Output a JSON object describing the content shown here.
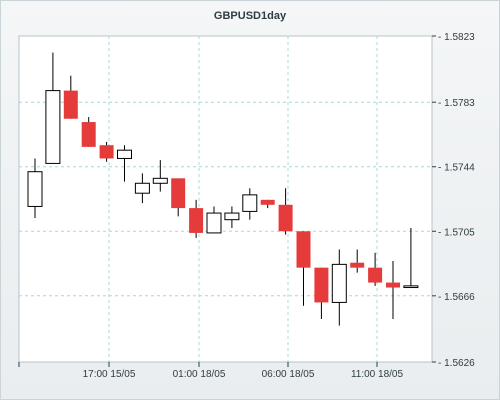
{
  "chart_data": {
    "type": "candlestick",
    "title": "GBPUSD1day",
    "y_ticks": [
      "1.5823",
      "1.5783",
      "1.5744",
      "1.5705",
      "1.5666",
      "1.5626"
    ],
    "ylim": [
      1.5626,
      1.5823
    ],
    "x_ticks": [
      "17:00 15/05",
      "01:00 18/05",
      "06:00 18/05",
      "11:00 18/05"
    ],
    "grid": true,
    "colors": {
      "up_fill": "#ffffff",
      "down_fill": "#e53b3b",
      "outline": "#000000",
      "grid": "#a8d8d8",
      "frame": "#c9d3d8"
    },
    "candles": [
      {
        "open": 1.572,
        "high": 1.5749,
        "low": 1.5713,
        "close": 1.5741
      },
      {
        "open": 1.5746,
        "high": 1.5813,
        "low": 1.5746,
        "close": 1.579
      },
      {
        "open": 1.579,
        "high": 1.5799,
        "low": 1.5773,
        "close": 1.5773
      },
      {
        "open": 1.5771,
        "high": 1.5774,
        "low": 1.5756,
        "close": 1.5756
      },
      {
        "open": 1.5757,
        "high": 1.5759,
        "low": 1.5747,
        "close": 1.5749
      },
      {
        "open": 1.5749,
        "high": 1.5757,
        "low": 1.5735,
        "close": 1.5754
      },
      {
        "open": 1.5728,
        "high": 1.574,
        "low": 1.5722,
        "close": 1.5734
      },
      {
        "open": 1.5734,
        "high": 1.5748,
        "low": 1.5729,
        "close": 1.5737
      },
      {
        "open": 1.5737,
        "high": 1.5737,
        "low": 1.5714,
        "close": 1.5719
      },
      {
        "open": 1.5719,
        "high": 1.5724,
        "low": 1.5701,
        "close": 1.5704
      },
      {
        "open": 1.5704,
        "high": 1.572,
        "low": 1.5704,
        "close": 1.5716
      },
      {
        "open": 1.5712,
        "high": 1.572,
        "low": 1.5707,
        "close": 1.5716
      },
      {
        "open": 1.5717,
        "high": 1.5731,
        "low": 1.5712,
        "close": 1.5727
      },
      {
        "open": 1.5724,
        "high": 1.5724,
        "low": 1.5719,
        "close": 1.5721
      },
      {
        "open": 1.5721,
        "high": 1.5731,
        "low": 1.5703,
        "close": 1.5705
      },
      {
        "open": 1.5705,
        "high": 1.5705,
        "low": 1.566,
        "close": 1.5683
      },
      {
        "open": 1.5683,
        "high": 1.5683,
        "low": 1.5652,
        "close": 1.5662
      },
      {
        "open": 1.5662,
        "high": 1.5694,
        "low": 1.5648,
        "close": 1.5685
      },
      {
        "open": 1.5686,
        "high": 1.5694,
        "low": 1.568,
        "close": 1.5683
      },
      {
        "open": 1.5683,
        "high": 1.5692,
        "low": 1.5672,
        "close": 1.5674
      },
      {
        "open": 1.5674,
        "high": 1.5687,
        "low": 1.5652,
        "close": 1.5671
      },
      {
        "open": 1.5671,
        "high": 1.5707,
        "low": 1.5671,
        "close": 1.5672
      }
    ]
  }
}
